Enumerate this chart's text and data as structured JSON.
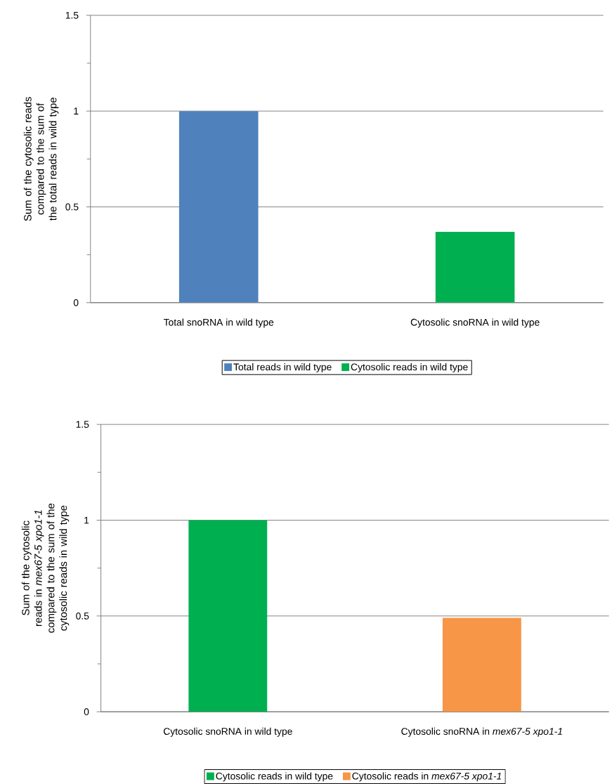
{
  "chart_data": [
    {
      "type": "bar",
      "ylabel": "Sum of the cytosolic reads compared to the sum of the total reads in wild type",
      "categories": [
        "Total snoRNA in wild type",
        "Cytosolic snoRNA in wild type"
      ],
      "series": [
        {
          "name": "Total reads in wild type",
          "color": "#4f81bd",
          "values": [
            1,
            null
          ]
        },
        {
          "name": "Cytosolic reads in wild type",
          "color": "#00b050",
          "values": [
            null,
            0.37
          ]
        }
      ],
      "ylim": [
        0,
        1.5
      ],
      "yticks": [
        0,
        {
          "value": 0.25,
          "label": null
        },
        0.5,
        {
          "value": 0.75,
          "label": null
        },
        1,
        {
          "value": 1.25,
          "label": null
        },
        1.5
      ],
      "grid": "y",
      "legend": "bottom"
    },
    {
      "type": "bar",
      "ylabel": "Sum of the cytosolic reads in *mex67-5 xpo1-1* compared to the sum of the cytosolic reads in wild type",
      "categories": [
        "Cytosolic snoRNA in wild type",
        "Cytosolic snoRNA in *mex67-5 xpo1-1*"
      ],
      "series": [
        {
          "name": "Cytosolic reads in wild type",
          "color": "#00b050",
          "values": [
            1,
            null
          ]
        },
        {
          "name": "Cytosolic reads in *mex67-5 xpo1-1*",
          "color": "#f79646",
          "values": [
            null,
            0.49
          ]
        }
      ],
      "ylim": [
        0,
        1.5
      ],
      "yticks": [
        0,
        {
          "value": 0.25,
          "label": null
        },
        0.5,
        {
          "value": 0.75,
          "label": null
        },
        1,
        {
          "value": 1.25,
          "label": null
        },
        1.5
      ],
      "grid": "y",
      "legend": "bottom"
    }
  ]
}
